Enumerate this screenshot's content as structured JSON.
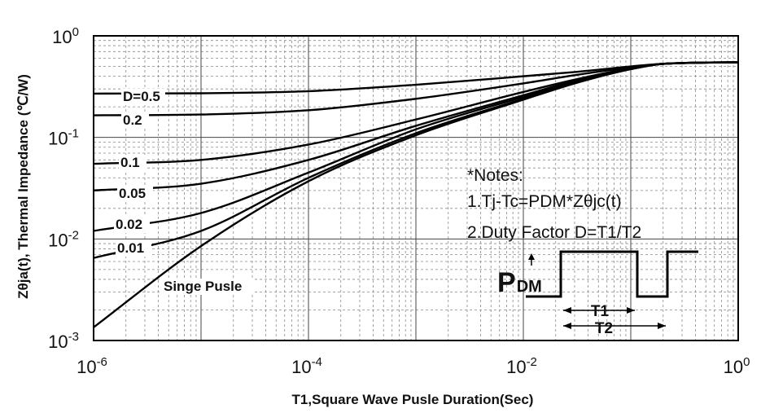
{
  "chart_data": {
    "type": "line",
    "title": "",
    "xlabel": "T1,Square Wave Pusle Duration(Sec)",
    "ylabel": "Zθja(t), Thermal Impedance (℃/W)",
    "xscale": "log",
    "yscale": "log",
    "xlim": [
      1e-06,
      1
    ],
    "ylim": [
      0.001,
      1
    ],
    "grid": true,
    "x_ticks": [
      {
        "value": 1e-06,
        "base": "10",
        "exp": "-6"
      },
      {
        "value": 0.0001,
        "base": "10",
        "exp": "-4"
      },
      {
        "value": 0.01,
        "base": "10",
        "exp": "-2"
      },
      {
        "value": 1,
        "base": "10",
        "exp": "0"
      }
    ],
    "y_ticks": [
      {
        "value": 0.001,
        "base": "10",
        "exp": "-3"
      },
      {
        "value": 0.01,
        "base": "10",
        "exp": "-2"
      },
      {
        "value": 0.1,
        "base": "10",
        "exp": "-1"
      },
      {
        "value": 1,
        "base": "10",
        "exp": "0"
      }
    ],
    "series": [
      {
        "label": "D=0.5",
        "x": [
          1e-06,
          1e-05,
          0.0001,
          0.001,
          0.01,
          0.03,
          0.1,
          0.2,
          1
        ],
        "y": [
          0.27,
          0.272,
          0.285,
          0.33,
          0.4,
          0.44,
          0.5,
          0.53,
          0.55
        ]
      },
      {
        "label": "0.2",
        "x": [
          1e-06,
          1e-05,
          0.0001,
          0.001,
          0.01,
          0.03,
          0.1,
          0.2,
          1
        ],
        "y": [
          0.165,
          0.168,
          0.185,
          0.24,
          0.34,
          0.41,
          0.49,
          0.53,
          0.55
        ]
      },
      {
        "label": "0.1",
        "x": [
          1e-06,
          1e-05,
          0.0001,
          0.001,
          0.01,
          0.03,
          0.1,
          0.2,
          1
        ],
        "y": [
          0.055,
          0.06,
          0.085,
          0.15,
          0.28,
          0.37,
          0.48,
          0.53,
          0.55
        ]
      },
      {
        "label": "0.05",
        "x": [
          1e-06,
          1e-05,
          0.0001,
          0.001,
          0.01,
          0.03,
          0.1,
          0.2,
          1
        ],
        "y": [
          0.03,
          0.035,
          0.06,
          0.13,
          0.26,
          0.36,
          0.48,
          0.53,
          0.55
        ]
      },
      {
        "label": "0.02",
        "x": [
          1e-06,
          1e-05,
          0.0001,
          0.001,
          0.01,
          0.03,
          0.1,
          0.2,
          1
        ],
        "y": [
          0.012,
          0.018,
          0.045,
          0.12,
          0.25,
          0.35,
          0.47,
          0.53,
          0.55
        ]
      },
      {
        "label": "0.01",
        "x": [
          1e-06,
          1e-05,
          0.0001,
          0.001,
          0.01,
          0.03,
          0.1,
          0.2,
          1
        ],
        "y": [
          0.0065,
          0.012,
          0.04,
          0.11,
          0.24,
          0.345,
          0.47,
          0.53,
          0.55
        ]
      },
      {
        "label": "Singe Pusle",
        "x": [
          1e-06,
          1e-05,
          0.0001,
          0.001,
          0.01,
          0.03,
          0.1,
          0.2,
          1
        ],
        "y": [
          0.00135,
          0.0085,
          0.037,
          0.105,
          0.235,
          0.34,
          0.47,
          0.53,
          0.55
        ]
      }
    ],
    "annotations": {
      "notes_title": "*Notes:",
      "note_1": "1.Tj-Tc=PDM*Zθjc(t)",
      "note_2": "2.Duty Factor D=T1/T2",
      "pdm_main": "P",
      "pdm_sub": "DM",
      "t1": "T1",
      "t2": "T2"
    }
  }
}
